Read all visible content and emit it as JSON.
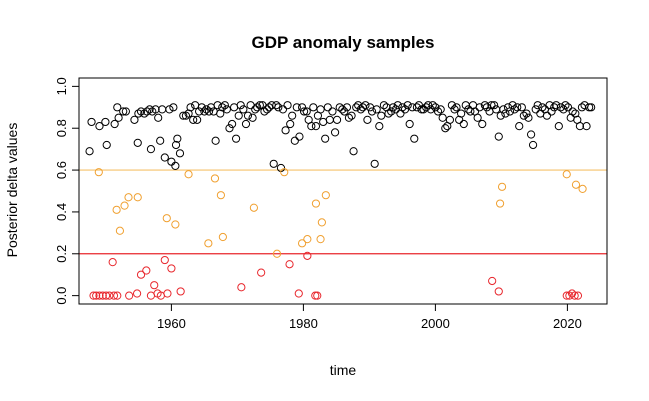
{
  "chart_data": {
    "type": "scatter",
    "title": "GDP anomaly samples",
    "xlabel": "time",
    "ylabel": "Posterior delta values",
    "xlim": [
      1946,
      2026
    ],
    "ylim": [
      -0.04,
      1.04
    ],
    "xticks": [
      1960,
      1980,
      2000,
      2020
    ],
    "yticks": [
      0.0,
      0.2,
      0.4,
      0.6,
      0.8,
      1.0
    ],
    "ytick_labels": [
      "0.0",
      "0.2",
      "0.4",
      "0.6",
      "0.8",
      "1.0"
    ],
    "grid": false,
    "reference_lines": [
      {
        "y": 0.6,
        "color": "#F5C26B"
      },
      {
        "y": 0.2,
        "color": "#E8262C"
      }
    ],
    "series": [
      {
        "color": "#000000",
        "points": [
          [
            1947.6,
            0.69
          ],
          [
            1947.9,
            0.83
          ],
          [
            1949.1,
            0.81
          ],
          [
            1950.0,
            0.83
          ],
          [
            1950.2,
            0.72
          ],
          [
            1951.4,
            0.82
          ],
          [
            1951.8,
            0.9
          ],
          [
            1952.0,
            0.85
          ],
          [
            1952.7,
            0.88
          ],
          [
            1953.1,
            0.88
          ],
          [
            1954.4,
            0.84
          ],
          [
            1954.9,
            0.73
          ],
          [
            1955.0,
            0.87
          ],
          [
            1955.4,
            0.88
          ],
          [
            1955.9,
            0.87
          ],
          [
            1956.3,
            0.88
          ],
          [
            1956.7,
            0.89
          ],
          [
            1956.9,
            0.7
          ],
          [
            1957.1,
            0.88
          ],
          [
            1957.6,
            0.89
          ],
          [
            1958.0,
            0.85
          ],
          [
            1958.3,
            0.74
          ],
          [
            1958.6,
            0.89
          ],
          [
            1959.0,
            0.66
          ],
          [
            1959.7,
            0.89
          ],
          [
            1960.0,
            0.64
          ],
          [
            1960.3,
            0.9
          ],
          [
            1960.6,
            0.62
          ],
          [
            1960.7,
            0.72
          ],
          [
            1960.9,
            0.75
          ],
          [
            1961.3,
            0.68
          ],
          [
            1961.8,
            0.86
          ],
          [
            1962.2,
            0.86
          ],
          [
            1962.6,
            0.87
          ],
          [
            1962.9,
            0.9
          ],
          [
            1963.3,
            0.84
          ],
          [
            1963.6,
            0.91
          ],
          [
            1963.9,
            0.84
          ],
          [
            1964.2,
            0.88
          ],
          [
            1964.6,
            0.9
          ],
          [
            1965.0,
            0.88
          ],
          [
            1965.3,
            0.89
          ],
          [
            1965.7,
            0.88
          ],
          [
            1966.0,
            0.9
          ],
          [
            1966.4,
            0.88
          ],
          [
            1966.7,
            0.74
          ],
          [
            1967.0,
            0.91
          ],
          [
            1967.4,
            0.87
          ],
          [
            1967.7,
            0.9
          ],
          [
            1968.1,
            0.91
          ],
          [
            1968.4,
            0.89
          ],
          [
            1968.8,
            0.8
          ],
          [
            1969.2,
            0.82
          ],
          [
            1969.5,
            0.9
          ],
          [
            1969.8,
            0.75
          ],
          [
            1970.2,
            0.86
          ],
          [
            1970.5,
            0.91
          ],
          [
            1970.9,
            0.89
          ],
          [
            1971.3,
            0.82
          ],
          [
            1971.6,
            0.86
          ],
          [
            1972.0,
            0.91
          ],
          [
            1972.3,
            0.85
          ],
          [
            1972.7,
            0.89
          ],
          [
            1973.0,
            0.9
          ],
          [
            1973.4,
            0.91
          ],
          [
            1973.8,
            0.91
          ],
          [
            1974.1,
            0.88
          ],
          [
            1974.5,
            0.89
          ],
          [
            1974.8,
            0.9
          ],
          [
            1975.2,
            0.91
          ],
          [
            1975.5,
            0.63
          ],
          [
            1975.9,
            0.91
          ],
          [
            1976.2,
            0.9
          ],
          [
            1976.6,
            0.61
          ],
          [
            1976.9,
            0.89
          ],
          [
            1977.3,
            0.79
          ],
          [
            1977.6,
            0.91
          ],
          [
            1978.0,
            0.82
          ],
          [
            1978.3,
            0.86
          ],
          [
            1978.7,
            0.74
          ],
          [
            1979.0,
            0.9
          ],
          [
            1979.4,
            0.76
          ],
          [
            1979.8,
            0.9
          ],
          [
            1980.1,
            0.88
          ],
          [
            1980.5,
            0.88
          ],
          [
            1980.8,
            0.84
          ],
          [
            1981.2,
            0.81
          ],
          [
            1981.5,
            0.9
          ],
          [
            1981.9,
            0.81
          ],
          [
            1982.2,
            0.86
          ],
          [
            1982.6,
            0.89
          ],
          [
            1983.0,
            0.83
          ],
          [
            1983.3,
            0.75
          ],
          [
            1983.7,
            0.9
          ],
          [
            1984.0,
            0.84
          ],
          [
            1984.4,
            0.88
          ],
          [
            1984.8,
            0.78
          ],
          [
            1985.1,
            0.84
          ],
          [
            1985.5,
            0.9
          ],
          [
            1985.9,
            0.89
          ],
          [
            1986.2,
            0.88
          ],
          [
            1986.6,
            0.9
          ],
          [
            1986.9,
            0.85
          ],
          [
            1987.3,
            0.86
          ],
          [
            1987.6,
            0.69
          ],
          [
            1988.0,
            0.9
          ],
          [
            1988.3,
            0.91
          ],
          [
            1988.7,
            0.89
          ],
          [
            1989.0,
            0.9
          ],
          [
            1989.4,
            0.91
          ],
          [
            1989.7,
            0.84
          ],
          [
            1990.1,
            0.9
          ],
          [
            1990.4,
            0.88
          ],
          [
            1990.8,
            0.63
          ],
          [
            1991.1,
            0.89
          ],
          [
            1991.5,
            0.81
          ],
          [
            1991.8,
            0.86
          ],
          [
            1992.2,
            0.91
          ],
          [
            1992.6,
            0.9
          ],
          [
            1992.9,
            0.87
          ],
          [
            1993.3,
            0.88
          ],
          [
            1993.6,
            0.9
          ],
          [
            1994.0,
            0.89
          ],
          [
            1994.3,
            0.91
          ],
          [
            1994.7,
            0.87
          ],
          [
            1995.0,
            0.9
          ],
          [
            1995.4,
            0.89
          ],
          [
            1995.8,
            0.91
          ],
          [
            1996.1,
            0.82
          ],
          [
            1996.5,
            0.9
          ],
          [
            1996.8,
            0.75
          ],
          [
            1997.2,
            0.9
          ],
          [
            1997.5,
            0.91
          ],
          [
            1997.9,
            0.89
          ],
          [
            1998.2,
            0.89
          ],
          [
            1998.6,
            0.9
          ],
          [
            1998.9,
            0.91
          ],
          [
            1999.3,
            0.89
          ],
          [
            1999.6,
            0.91
          ],
          [
            2000.0,
            0.9
          ],
          [
            2000.4,
            0.88
          ],
          [
            2000.8,
            0.89
          ],
          [
            2001.1,
            0.85
          ],
          [
            2001.5,
            0.8
          ],
          [
            2001.8,
            0.81
          ],
          [
            2002.2,
            0.84
          ],
          [
            2002.5,
            0.91
          ],
          [
            2002.9,
            0.89
          ],
          [
            2003.2,
            0.9
          ],
          [
            2003.6,
            0.84
          ],
          [
            2003.9,
            0.87
          ],
          [
            2004.3,
            0.82
          ],
          [
            2004.6,
            0.91
          ],
          [
            2005.0,
            0.89
          ],
          [
            2005.3,
            0.88
          ],
          [
            2005.7,
            0.91
          ],
          [
            2006.0,
            0.88
          ],
          [
            2006.4,
            0.85
          ],
          [
            2006.7,
            0.9
          ],
          [
            2007.1,
            0.82
          ],
          [
            2007.5,
            0.91
          ],
          [
            2007.8,
            0.9
          ],
          [
            2008.2,
            0.88
          ],
          [
            2008.5,
            0.91
          ],
          [
            2008.9,
            0.91
          ],
          [
            2009.2,
            0.89
          ],
          [
            2009.6,
            0.76
          ],
          [
            2009.9,
            0.86
          ],
          [
            2010.3,
            0.89
          ],
          [
            2010.6,
            0.87
          ],
          [
            2011.0,
            0.9
          ],
          [
            2011.3,
            0.88
          ],
          [
            2011.7,
            0.91
          ],
          [
            2012.0,
            0.89
          ],
          [
            2012.4,
            0.9
          ],
          [
            2012.7,
            0.81
          ],
          [
            2013.1,
            0.9
          ],
          [
            2013.4,
            0.86
          ],
          [
            2013.8,
            0.87
          ],
          [
            2014.1,
            0.85
          ],
          [
            2014.5,
            0.77
          ],
          [
            2014.8,
            0.72
          ],
          [
            2015.2,
            0.89
          ],
          [
            2015.5,
            0.91
          ],
          [
            2015.9,
            0.87
          ],
          [
            2016.2,
            0.9
          ],
          [
            2016.6,
            0.89
          ],
          [
            2016.9,
            0.86
          ],
          [
            2017.3,
            0.91
          ],
          [
            2017.6,
            0.88
          ],
          [
            2018.0,
            0.9
          ],
          [
            2018.3,
            0.91
          ],
          [
            2018.7,
            0.81
          ],
          [
            2019.0,
            0.9
          ],
          [
            2019.4,
            0.89
          ],
          [
            2019.7,
            0.91
          ],
          [
            2020.1,
            0.9
          ],
          [
            2020.5,
            0.85
          ],
          [
            2020.8,
            0.88
          ],
          [
            2021.2,
            0.87
          ],
          [
            2021.5,
            0.84
          ],
          [
            2021.9,
            0.81
          ],
          [
            2022.2,
            0.9
          ],
          [
            2022.6,
            0.91
          ],
          [
            2022.9,
            0.81
          ],
          [
            2023.3,
            0.9
          ],
          [
            2023.6,
            0.9
          ]
        ]
      },
      {
        "color": "#F0A030",
        "points": [
          [
            1949.0,
            0.59
          ],
          [
            1951.7,
            0.41
          ],
          [
            1952.2,
            0.31
          ],
          [
            1952.9,
            0.43
          ],
          [
            1953.5,
            0.47
          ],
          [
            1954.9,
            0.47
          ],
          [
            1959.3,
            0.37
          ],
          [
            1960.6,
            0.34
          ],
          [
            1962.6,
            0.58
          ],
          [
            1965.6,
            0.25
          ],
          [
            1966.6,
            0.56
          ],
          [
            1967.5,
            0.48
          ],
          [
            1967.8,
            0.28
          ],
          [
            1972.5,
            0.42
          ],
          [
            1976.0,
            0.2
          ],
          [
            1977.1,
            0.59
          ],
          [
            1979.8,
            0.25
          ],
          [
            1980.6,
            0.27
          ],
          [
            1981.9,
            0.44
          ],
          [
            1982.6,
            0.27
          ],
          [
            1982.8,
            0.35
          ],
          [
            1983.4,
            0.48
          ],
          [
            2009.8,
            0.44
          ],
          [
            2010.1,
            0.52
          ],
          [
            2019.9,
            0.58
          ],
          [
            2021.3,
            0.53
          ],
          [
            2022.3,
            0.51
          ]
        ]
      },
      {
        "color": "#E8262C",
        "points": [
          [
            1948.2,
            0.0
          ],
          [
            1948.6,
            0.0
          ],
          [
            1949.1,
            0.0
          ],
          [
            1949.6,
            0.0
          ],
          [
            1950.1,
            0.0
          ],
          [
            1950.6,
            0.0
          ],
          [
            1951.1,
            0.16
          ],
          [
            1951.3,
            0.0
          ],
          [
            1951.8,
            0.0
          ],
          [
            1953.6,
            0.0
          ],
          [
            1954.8,
            0.01
          ],
          [
            1955.4,
            0.1
          ],
          [
            1956.2,
            0.12
          ],
          [
            1956.9,
            0.0
          ],
          [
            1957.4,
            0.05
          ],
          [
            1957.9,
            0.01
          ],
          [
            1958.4,
            0.0
          ],
          [
            1959.0,
            0.17
          ],
          [
            1959.4,
            0.01
          ],
          [
            1960.0,
            0.13
          ],
          [
            1961.4,
            0.02
          ],
          [
            1970.6,
            0.04
          ],
          [
            1973.6,
            0.11
          ],
          [
            1977.9,
            0.15
          ],
          [
            1979.3,
            0.01
          ],
          [
            1980.6,
            0.19
          ],
          [
            1981.8,
            0.0
          ],
          [
            1982.1,
            0.0
          ],
          [
            2008.6,
            0.07
          ],
          [
            2009.6,
            0.02
          ],
          [
            2019.9,
            0.0
          ],
          [
            2020.3,
            0.0
          ],
          [
            2020.7,
            0.01
          ],
          [
            2021.1,
            0.0
          ],
          [
            2021.6,
            0.0
          ]
        ]
      }
    ]
  }
}
